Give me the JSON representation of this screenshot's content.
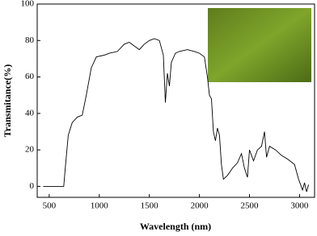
{
  "chart_data": {
    "type": "line",
    "x_label": "Wavelength (nm)",
    "y_label": "Transmitance(%)",
    "series": [
      {
        "color": "#000000",
        "x": [
          440,
          645,
          660,
          690,
          730,
          780,
          830,
          870,
          920,
          970,
          1050,
          1100,
          1180,
          1250,
          1300,
          1350,
          1400,
          1450,
          1500,
          1550,
          1600,
          1640,
          1660,
          1680,
          1700,
          1720,
          1760,
          1800,
          1880,
          1950,
          2000,
          2050,
          2080,
          2100,
          2120,
          2140,
          2160,
          2180,
          2200,
          2220,
          2240,
          2280,
          2330,
          2380,
          2420,
          2450,
          2480,
          2500,
          2540,
          2580,
          2620,
          2650,
          2670,
          2700,
          2760,
          2820,
          2880,
          2950,
          2990,
          3010,
          3030,
          3050,
          3070,
          3090
        ],
        "values": [
          0,
          0,
          10,
          28,
          35,
          38,
          39,
          50,
          65,
          71,
          72,
          73,
          74,
          78,
          79,
          77,
          75,
          78,
          80,
          81,
          80,
          72,
          46,
          62,
          55,
          68,
          73,
          74,
          75,
          74,
          73,
          71,
          60,
          50,
          48,
          30,
          25,
          32,
          28,
          12,
          4,
          6,
          10,
          13,
          18,
          10,
          5,
          20,
          14,
          20,
          22,
          30,
          16,
          22,
          20,
          17,
          15,
          12,
          4,
          1,
          -2,
          2,
          -3,
          1
        ]
      }
    ],
    "xlim": [
      380,
      3150
    ],
    "ylim": [
      -6,
      100
    ],
    "xticks": [
      500,
      1000,
      1500,
      2000,
      2500,
      3000
    ],
    "yticks": [
      0,
      20,
      40,
      60,
      80,
      100
    ]
  }
}
